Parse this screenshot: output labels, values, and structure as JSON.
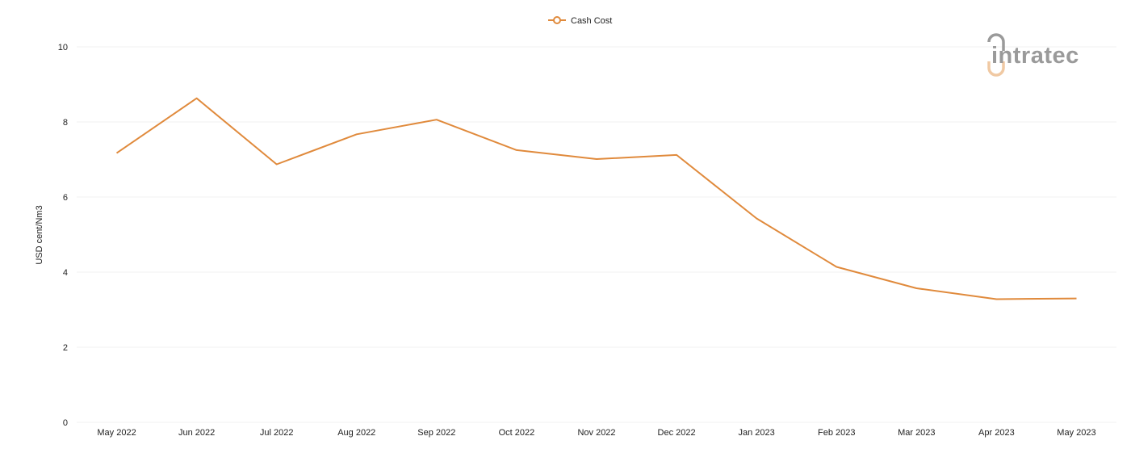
{
  "colors": {
    "series": "#e08a3c",
    "grid": "#f1f1f1",
    "logo_gray": "#9a9a9a",
    "logo_accent": "#f0c9a3"
  },
  "logo": {
    "text": "intratec"
  },
  "chart_data": {
    "type": "line",
    "title": "",
    "xlabel": "",
    "ylabel": "USD cent/Nm3",
    "ylim": [
      0,
      10
    ],
    "yticks": [
      0,
      2,
      4,
      6,
      8,
      10
    ],
    "grid": true,
    "legend_position": "top-center",
    "categories": [
      "May 2022",
      "Jun 2022",
      "Jul 2022",
      "Aug 2022",
      "Sep 2022",
      "Oct 2022",
      "Nov 2022",
      "Dec 2022",
      "Jan 2023",
      "Feb 2023",
      "Mar 2023",
      "Apr 2023",
      "May 2023"
    ],
    "series": [
      {
        "name": "Cash Cost",
        "values": [
          7.17,
          8.63,
          6.87,
          7.67,
          8.06,
          7.25,
          7.01,
          7.12,
          5.43,
          4.14,
          3.57,
          3.28,
          3.3
        ]
      }
    ]
  }
}
